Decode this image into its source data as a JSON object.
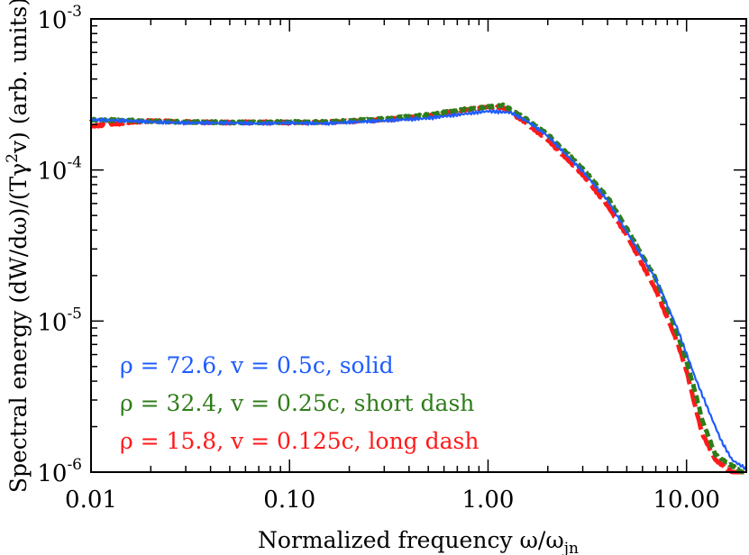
{
  "chart_data": {
    "type": "line",
    "title": "",
    "xlabel": "Normalized frequency ω/ω",
    "xlabel_sub": "jn",
    "ylabel": "Spectral energy (dW/dω)/(Tγ",
    "ylabel_sup": "2",
    "ylabel_end": "v) (arb. units)",
    "xscale": "log",
    "yscale": "log",
    "xlim": [
      0.01,
      20
    ],
    "ylim": [
      1e-06,
      0.001
    ],
    "grid": false,
    "legend_placement": "bottom-left",
    "x_ticks": [
      {
        "value": 0.01,
        "label": "0.01"
      },
      {
        "value": 0.1,
        "label": "0.10"
      },
      {
        "value": 1,
        "label": "1.00"
      },
      {
        "value": 10,
        "label": "10.00"
      }
    ],
    "y_ticks": [
      {
        "value": 0.001,
        "base": "10",
        "exp": "-3"
      },
      {
        "value": 0.0001,
        "base": "10",
        "exp": "-4"
      },
      {
        "value": 1e-05,
        "base": "10",
        "exp": "-5"
      },
      {
        "value": 1e-06,
        "base": "10",
        "exp": "-6"
      }
    ],
    "series": [
      {
        "name": "ρ = 72.6, v = 0.5c, solid",
        "color": "#1f5cff",
        "style": "solid",
        "x": [
          0.01,
          0.015,
          0.02,
          0.03,
          0.05,
          0.07,
          0.1,
          0.15,
          0.2,
          0.3,
          0.5,
          0.7,
          1.0,
          1.3,
          1.6,
          2.0,
          3.0,
          4.0,
          5.0,
          7.0,
          9.0,
          11.0,
          13.0,
          15.0,
          17.0,
          20.0
        ],
        "y": [
          0.000215,
          0.000212,
          0.000208,
          0.000205,
          0.000205,
          0.000203,
          0.000205,
          0.000203,
          0.000207,
          0.000212,
          0.00022,
          0.000232,
          0.000245,
          0.00024,
          0.000208,
          0.000168,
          9.8e-05,
          6.3e-05,
          3.9e-05,
          1.9e-05,
          8.9e-06,
          4.3e-06,
          2.5e-06,
          1.6e-06,
          1.2e-06,
          1.05e-06
        ]
      },
      {
        "name": "ρ = 32.4, v = 0.25c, short dash",
        "color": "#2f7d1a",
        "style": "short-dash",
        "x": [
          0.01,
          0.015,
          0.02,
          0.03,
          0.05,
          0.07,
          0.1,
          0.15,
          0.2,
          0.3,
          0.5,
          0.7,
          1.0,
          1.2,
          1.5,
          2.0,
          3.0,
          4.0,
          5.0,
          7.0,
          9.0,
          10.0,
          11.0,
          12.0,
          14.0,
          17.0,
          20.0
        ],
        "y": [
          0.000215,
          0.000213,
          0.00021,
          0.000208,
          0.000207,
          0.000207,
          0.000208,
          0.000208,
          0.000212,
          0.000218,
          0.000232,
          0.000248,
          0.000262,
          0.000268,
          0.000225,
          0.000172,
          0.000102,
          6.6e-05,
          4.1e-05,
          1.9e-05,
          8.2e-06,
          5.4e-06,
          3.5e-06,
          2.2e-06,
          1.3e-06,
          1.1e-06,
          9.5e-07
        ]
      },
      {
        "name": "ρ = 15.8, v = 0.125c, long dash",
        "color": "#ff1a1a",
        "style": "long-dash",
        "x": [
          0.01,
          0.015,
          0.02,
          0.03,
          0.05,
          0.07,
          0.1,
          0.15,
          0.2,
          0.3,
          0.5,
          0.7,
          1.0,
          1.2,
          1.5,
          2.0,
          3.0,
          4.0,
          5.0,
          7.0,
          9.0,
          10.0,
          11.0,
          12.0,
          14.0,
          17.0,
          20.0
        ],
        "y": [
          0.000195,
          0.000205,
          0.000212,
          0.000208,
          0.000206,
          0.000207,
          0.000206,
          0.000207,
          0.00021,
          0.000215,
          0.000228,
          0.000245,
          0.000262,
          0.000258,
          0.000212,
          0.000158,
          9.3e-05,
          5.8e-05,
          3.7e-05,
          1.6e-05,
          7.2e-06,
          4.7e-06,
          2.8e-06,
          1.8e-06,
          1.2e-06,
          1e-06,
          8.8e-07
        ]
      }
    ],
    "legend": [
      {
        "text": "ρ = 72.6, v = 0.5c, solid",
        "color": "#1f5cff"
      },
      {
        "text": "ρ = 32.4, v = 0.25c, short dash",
        "color": "#2f7d1a"
      },
      {
        "text": "ρ = 15.8, v = 0.125c, long dash",
        "color": "#ff1a1a"
      }
    ]
  }
}
